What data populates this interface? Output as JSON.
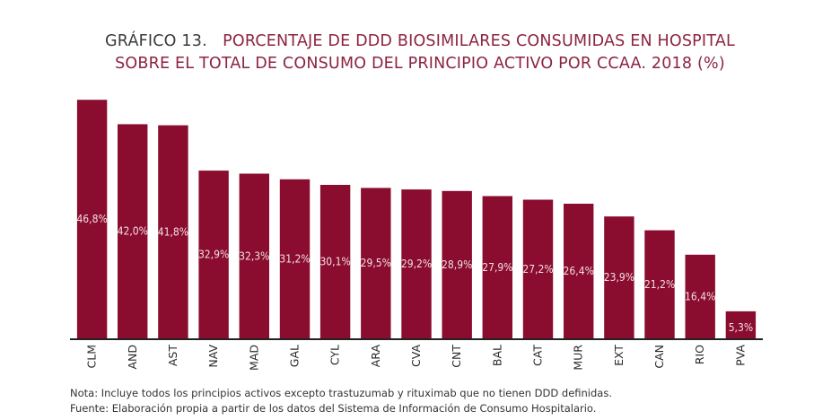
{
  "chart_data": {
    "type": "bar",
    "title_prefix": "GRÁFICO 13.",
    "title_line1": "PORCENTAJE DE DDD BIOSIMILARES CONSUMIDAS EN HOSPITAL",
    "title_line2": "SOBRE EL TOTAL DE CONSUMO DEL PRINCIPIO ACTIVO POR CCAA. 2018 (%)",
    "categories": [
      "CLM",
      "AND",
      "AST",
      "NAV",
      "MAD",
      "GAL",
      "CYL",
      "ARA",
      "CVA",
      "CNT",
      "BAL",
      "CAT",
      "MUR",
      "EXT",
      "CAN",
      "RIO",
      "PVA"
    ],
    "values": [
      46.8,
      42.0,
      41.8,
      32.9,
      32.3,
      31.2,
      30.1,
      29.5,
      29.2,
      28.9,
      27.9,
      27.2,
      26.4,
      23.9,
      21.2,
      16.4,
      5.3
    ],
    "data_labels": [
      "46,8%",
      "42,0%",
      "41,8%",
      "32,9%",
      "32,3%",
      "31,2%",
      "30,1%",
      "29,5%",
      "29,2%",
      "28,9%",
      "27,9%",
      "27,2%",
      "26,4%",
      "23,9%",
      "21,2%",
      "16,4%",
      "5,3%"
    ],
    "xlabel": "",
    "ylabel": "",
    "ylim": [
      0,
      47
    ],
    "grid": false,
    "legend": "none",
    "y_axis_visible": false,
    "colors": {
      "bar": "#8a0c2e",
      "bar_label": "#f1dfe4",
      "title_main": "#8c2340",
      "title_prefix": "#3a3a3a",
      "axis": "#222222"
    }
  },
  "notes": {
    "nota": "Nota: Incluye todos los principios activos excepto trastuzumab y rituximab que no tienen DDD definidas.",
    "fuente": "Fuente: Elaboración propia a partir de los datos del Sistema de Información de Consumo Hospitalario."
  }
}
